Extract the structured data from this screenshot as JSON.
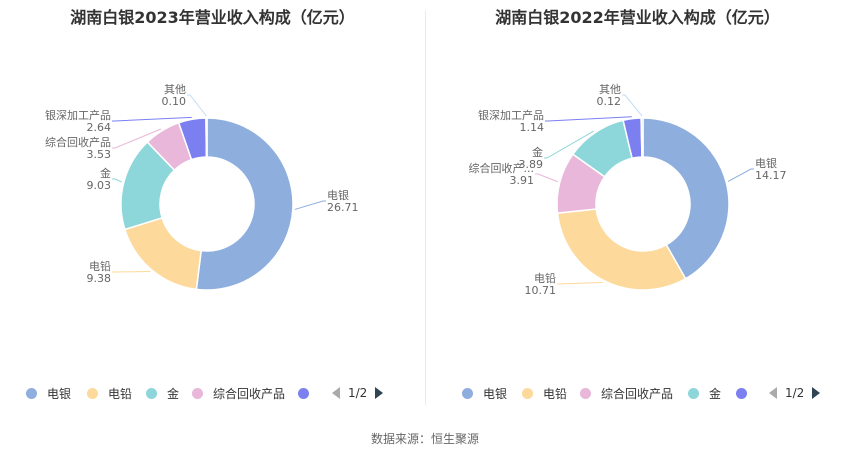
{
  "chart_data": [
    {
      "type": "pie",
      "title": "湖南白银2023年营业收入构成（亿元）",
      "categories": [
        "电银",
        "电铅",
        "金",
        "综合回收产品",
        "银深加工产品",
        "其他"
      ],
      "values": [
        26.71,
        9.38,
        9.03,
        3.53,
        2.64,
        0.1
      ],
      "value_labels": [
        "26.71",
        "9.38",
        "9.03",
        "3.53",
        "2.64",
        "0.10"
      ],
      "slice_labels": [
        "电银",
        "电铅",
        "金",
        "综合回收产品",
        "银深加工产品",
        "其他"
      ],
      "colors": [
        "#8eaedd",
        "#fdd99b",
        "#8dd6d9",
        "#e8b7d9",
        "#7b7ff0",
        "#c2ddf5"
      ],
      "legend": {
        "items": [
          "电银",
          "电铅",
          "金",
          "综合回收产品",
          ""
        ],
        "page": "1/2",
        "placement": "bottom"
      }
    },
    {
      "type": "pie",
      "title": "湖南白银2022年营业收入构成（亿元）",
      "categories": [
        "电银",
        "电铅",
        "综合回收产品",
        "金",
        "银深加工产品",
        "其他"
      ],
      "values": [
        14.17,
        10.71,
        3.91,
        3.89,
        1.14,
        0.12
      ],
      "value_labels": [
        "14.17",
        "10.71",
        "3.91",
        "3.89",
        "1.14",
        "0.12"
      ],
      "slice_labels": [
        "电银",
        "电铅",
        "综合回收产...",
        "金",
        "银深加工产品",
        "其他"
      ],
      "colors": [
        "#8eaedd",
        "#fdd99b",
        "#e8b7d9",
        "#8dd6d9",
        "#7b7ff0",
        "#c2ddf5"
      ],
      "legend": {
        "items": [
          "电银",
          "电铅",
          "综合回收产品",
          "金",
          ""
        ],
        "page": "1/2",
        "placement": "bottom"
      }
    }
  ],
  "source": "数据来源：恒生聚源"
}
